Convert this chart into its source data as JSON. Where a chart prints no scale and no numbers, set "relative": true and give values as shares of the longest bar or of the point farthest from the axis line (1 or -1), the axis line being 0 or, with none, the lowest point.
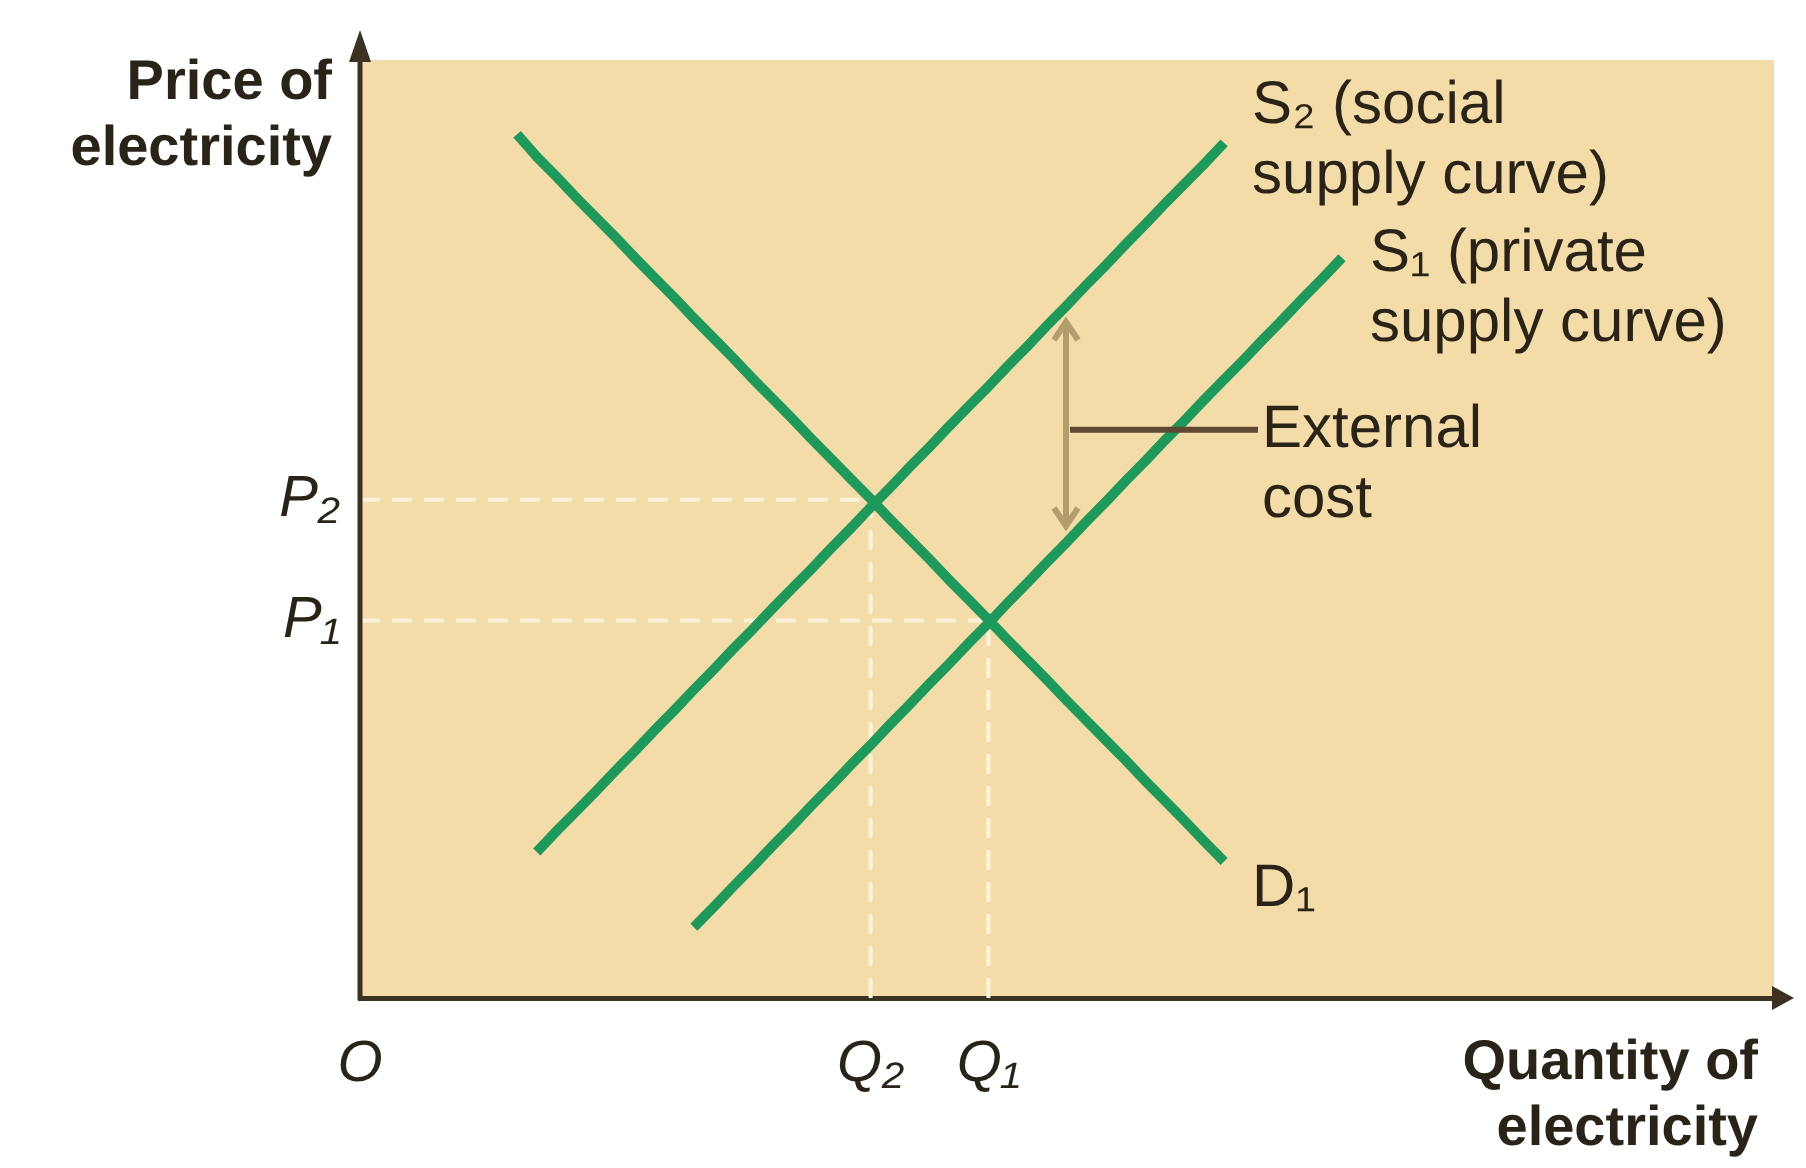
{
  "chart_data": {
    "type": "line",
    "relative": true,
    "xlabel": "Quantity of electricity",
    "ylabel": "Price of electricity",
    "marker": "none",
    "categories": [
      "O",
      null,
      null,
      null,
      null,
      null,
      null,
      null,
      null,
      null,
      null,
      null,
      null,
      null,
      null,
      null,
      null,
      null,
      null,
      null,
      null,
      null,
      null,
      null,
      null,
      null,
      "Q₂",
      null,
      null,
      null,
      null,
      null,
      "Q₁",
      null,
      null,
      null,
      null,
      null,
      null,
      null,
      null,
      null,
      null,
      null,
      null,
      null,
      null,
      null,
      null,
      null,
      null,
      null,
      null,
      null,
      null,
      null,
      null,
      null,
      null,
      null,
      null,
      null,
      null,
      null,
      null,
      null,
      null,
      null,
      null,
      null,
      null,
      null,
      null
    ],
    "series": [
      {
        "name": "S₂ (social supply curve)",
        "color": "#1d9a5b",
        "values": [
          null,
          null,
          null,
          null,
          null,
          null,
          null,
          null,
          null,
          0.169,
          0.193,
          0.216,
          0.239,
          0.263,
          0.286,
          0.31,
          0.333,
          0.357,
          0.38,
          0.404,
          0.427,
          0.451,
          0.474,
          0.497,
          0.521,
          0.544,
          0.568,
          0.591,
          0.615,
          0.638,
          0.662,
          0.685,
          0.708,
          0.732,
          0.755,
          0.779,
          0.802,
          0.826,
          0.849,
          0.873,
          0.896,
          0.92,
          0.943,
          0.966,
          0.99,
          null,
          null,
          null,
          null,
          null,
          null,
          null,
          null,
          null,
          null,
          null,
          null,
          null,
          null,
          null,
          null,
          null,
          null,
          null,
          null,
          null,
          null,
          null,
          null,
          null,
          null,
          null,
          null
        ]
      },
      {
        "name": "S₁ (private supply curve)",
        "color": "#1d9a5b",
        "values": [
          null,
          null,
          null,
          null,
          null,
          null,
          null,
          null,
          null,
          null,
          null,
          null,
          null,
          null,
          null,
          null,
          null,
          0.082,
          0.105,
          0.129,
          0.152,
          0.176,
          0.199,
          0.223,
          0.246,
          0.27,
          0.293,
          0.317,
          0.34,
          0.364,
          0.387,
          0.411,
          0.434,
          0.458,
          0.481,
          0.505,
          0.528,
          0.552,
          0.575,
          0.599,
          0.622,
          0.646,
          0.669,
          0.693,
          0.716,
          0.739,
          0.763,
          0.786,
          0.81,
          0.833,
          0.857,
          null,
          null,
          null,
          null,
          null,
          null,
          null,
          null,
          null,
          null,
          null,
          null,
          null,
          null,
          null,
          null,
          null,
          null,
          null,
          null,
          null,
          null
        ]
      },
      {
        "name": "D₁",
        "color": "#1d9a5b",
        "values": [
          null,
          null,
          null,
          null,
          null,
          null,
          null,
          null,
          1,
          0.974,
          0.951,
          0.927,
          0.904,
          0.881,
          0.857,
          0.834,
          0.811,
          0.787,
          0.764,
          0.741,
          0.717,
          0.694,
          0.671,
          0.647,
          0.624,
          0.601,
          0.578,
          0.554,
          0.531,
          0.508,
          0.484,
          0.461,
          0.438,
          0.414,
          0.391,
          0.368,
          0.344,
          0.321,
          0.298,
          0.275,
          0.251,
          0.228,
          0.205,
          0.181,
          0.158,
          null,
          null,
          null,
          null,
          null,
          null,
          null,
          null,
          null,
          null,
          null,
          null,
          null,
          null,
          null,
          null,
          null,
          null,
          null,
          null,
          null,
          null,
          null,
          null,
          null,
          null,
          null,
          null
        ]
      }
    ],
    "ref_lines": [
      {
        "axis": "y",
        "value": 0.577,
        "label": "P₂",
        "color": "#fbf2dc",
        "line_style": "dashed"
      },
      {
        "axis": "y",
        "value": 0.437,
        "label": "P₁",
        "color": "#fbf2dc",
        "line_style": "dashed"
      },
      {
        "axis": "x",
        "value": "Q₂",
        "color": "#fbf2dc",
        "line_style": "dashed"
      },
      {
        "axis": "x",
        "value": "Q₁",
        "color": "#fbf2dc",
        "line_style": "dashed"
      }
    ],
    "annotations": [
      "External cost"
    ]
  }
}
